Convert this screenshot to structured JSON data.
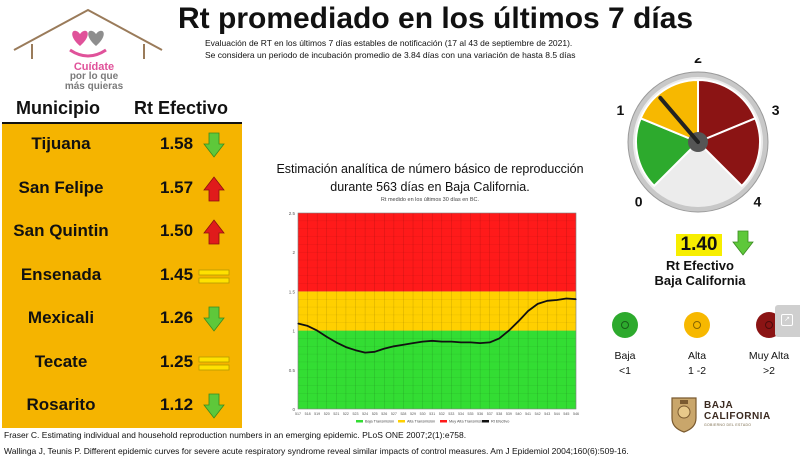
{
  "header": {
    "title": "Rt promediado en los últimos 7 días",
    "subtitle_line1": "Evaluación de RT en los últimos 7 días estables de notificación (17 al 43 de septiembre de 2021).",
    "subtitle_line2": "Se considera un periodo de incubación promedio de 3.84 días con una variación de hasta 8.5 días"
  },
  "logo": {
    "line1": "Cuídate",
    "line2": "por lo que",
    "line3": "más quieras"
  },
  "table": {
    "headers": [
      "Municipio",
      "Rt Efectivo"
    ],
    "rows": [
      {
        "municipio": "Tijuana",
        "rt": "1.58",
        "trend": "down"
      },
      {
        "municipio": "San Felipe",
        "rt": "1.57",
        "trend": "up"
      },
      {
        "municipio": "San Quintin",
        "rt": "1.50",
        "trend": "up"
      },
      {
        "municipio": "Ensenada",
        "rt": "1.45",
        "trend": "equal"
      },
      {
        "municipio": "Mexicali",
        "rt": "1.26",
        "trend": "down"
      },
      {
        "municipio": "Tecate",
        "rt": "1.25",
        "trend": "equal"
      },
      {
        "municipio": "Rosarito",
        "rt": "1.12",
        "trend": "down"
      }
    ]
  },
  "chart_data": {
    "type": "line",
    "title": "Estimación analítica de número básico de reproducción durante 563 días en Baja California.",
    "title_line1": "Estimación analítica de número básico de reproducción",
    "title_line2": "durante 563 días en Baja California.",
    "subtitle": "Rt medido en los últimos 30 días en BC.",
    "xlabel": "",
    "ylabel": "",
    "ylim": [
      0,
      2.5
    ],
    "yticks": [
      "0",
      "0.5",
      "1",
      "1.5",
      "2",
      "2.5"
    ],
    "x": [
      517,
      518,
      519,
      520,
      521,
      522,
      523,
      524,
      525,
      526,
      527,
      528,
      529,
      530,
      531,
      532,
      533,
      534,
      535,
      536,
      537,
      538,
      539,
      540,
      541,
      542,
      543,
      544,
      545,
      546
    ],
    "bands": [
      {
        "name": "Baja Transmisión",
        "from": 0,
        "to": 1,
        "color": "#33dd33"
      },
      {
        "name": "Alta Transmisión",
        "from": 1,
        "to": 1.5,
        "color": "#ffd000"
      },
      {
        "name": "Muy Alta Transmisión",
        "from": 1.5,
        "to": 2.5,
        "color": "#ff1a1a"
      }
    ],
    "series": [
      {
        "name": "Rt Efectivo",
        "color": "#111111",
        "values": [
          1.09,
          1.06,
          1.0,
          0.92,
          0.85,
          0.79,
          0.75,
          0.72,
          0.73,
          0.77,
          0.8,
          0.82,
          0.84,
          0.86,
          0.87,
          0.86,
          0.86,
          0.85,
          0.85,
          0.84,
          0.85,
          0.9,
          1.0,
          1.12,
          1.25,
          1.34,
          1.38,
          1.39,
          1.41,
          1.4
        ]
      }
    ],
    "legend": [
      "Baja Transmisión",
      "Alta Transmisión",
      "Muy Alta Transmisión",
      "Rt Efectivo"
    ],
    "grid": true,
    "legend_position": "bottom"
  },
  "gauge": {
    "labels": [
      "0",
      "1",
      "2",
      "3",
      "4"
    ],
    "value": 1.4,
    "min": 0,
    "max": 4,
    "colors": {
      "green": "#2daa2d",
      "yellow": "#f7b800",
      "red": "#8b1414"
    }
  },
  "summary": {
    "rt_value": "1.40",
    "trend": "down",
    "label_line1": "Rt Efectivo",
    "label_line2": "Baja California"
  },
  "legend_items": [
    {
      "label1": "Baja",
      "label2": "<1",
      "color": "#2daa2d"
    },
    {
      "label1": "Alta",
      "label2": "1 -2",
      "color": "#f7b800"
    },
    {
      "label1": "Muy Alta",
      "label2": ">2",
      "color": "#8b1414"
    }
  ],
  "bc_logo": {
    "line1": "BAJA",
    "line2": "CALIFORNIA",
    "line3": "GOBIERNO DEL ESTADO"
  },
  "references": [
    "Fraser C. Estimating individual and household reproduction numbers in an emerging epidemic. PLoS ONE 2007;2(1):e758.",
    "Wallinga J, Teunis P. Different epidemic curves for severe acute respiratory syndrome reveal similar impacts of control measures. Am J Epidemiol 2004;160(6):509-16."
  ],
  "colors": {
    "green_arrow": "#5ec83a",
    "red_arrow": "#e01b1b",
    "equal": "#ffe100",
    "table_bg": "#f5b400"
  }
}
